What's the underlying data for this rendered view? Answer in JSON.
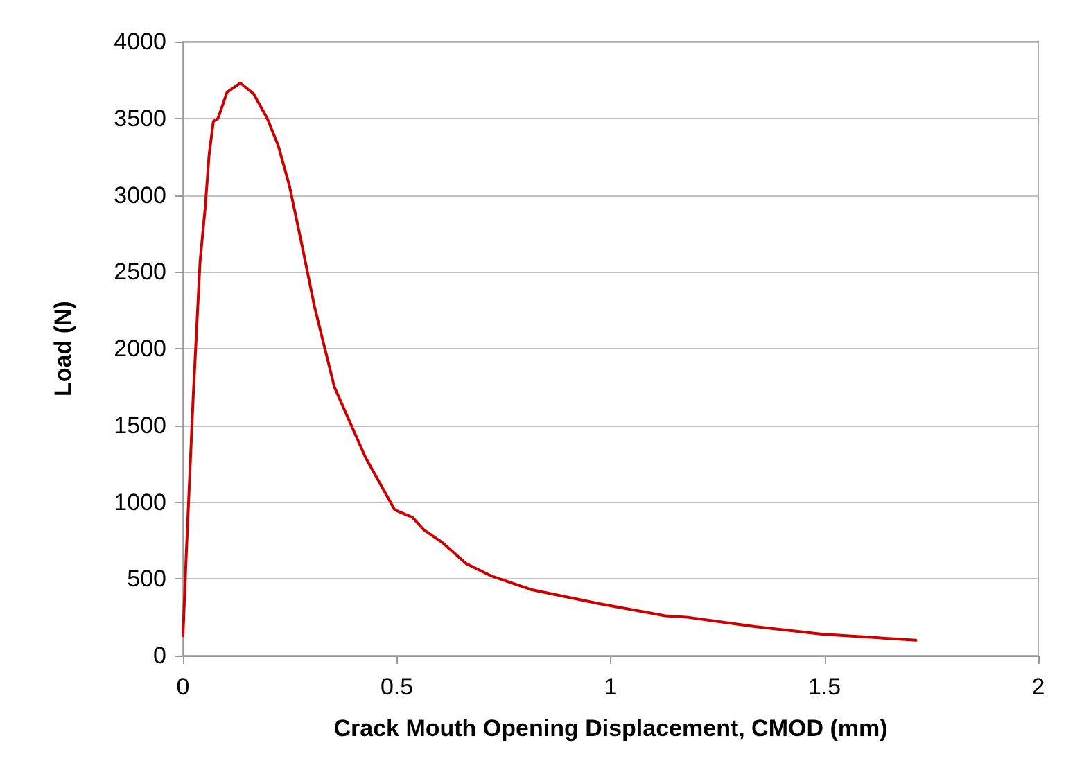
{
  "chart_data": {
    "type": "line",
    "xlabel": "Crack Mouth Opening Displacement, CMOD (mm)",
    "ylabel": "Load (N)",
    "x": [
      0,
      0.008,
      0.024,
      0.04,
      0.052,
      0.061,
      0.071,
      0.082,
      0.103,
      0.134,
      0.165,
      0.197,
      0.223,
      0.249,
      0.28,
      0.307,
      0.354,
      0.427,
      0.495,
      0.537,
      0.563,
      0.605,
      0.662,
      0.72,
      0.814,
      0.971,
      1.128,
      1.18,
      1.337,
      1.494,
      1.714
    ],
    "series": [
      {
        "color": "#cc0000",
        "values": [
          130,
          680,
          1690,
          2570,
          2920,
          3260,
          3480,
          3500,
          3670,
          3730,
          3660,
          3500,
          3320,
          3060,
          2650,
          2280,
          1750,
          1290,
          950,
          900,
          820,
          740,
          600,
          520,
          430,
          340,
          260,
          250,
          190,
          140,
          100
        ]
      }
    ],
    "xlim": [
      0,
      2
    ],
    "xticks": [
      0,
      0.5,
      1,
      1.5,
      2
    ],
    "ylim": [
      0,
      4000
    ],
    "yticks": [
      0,
      500,
      1000,
      1500,
      2000,
      2500,
      3000,
      3500,
      4000
    ],
    "grid": "y",
    "marker": "none",
    "line_style": "solid"
  }
}
